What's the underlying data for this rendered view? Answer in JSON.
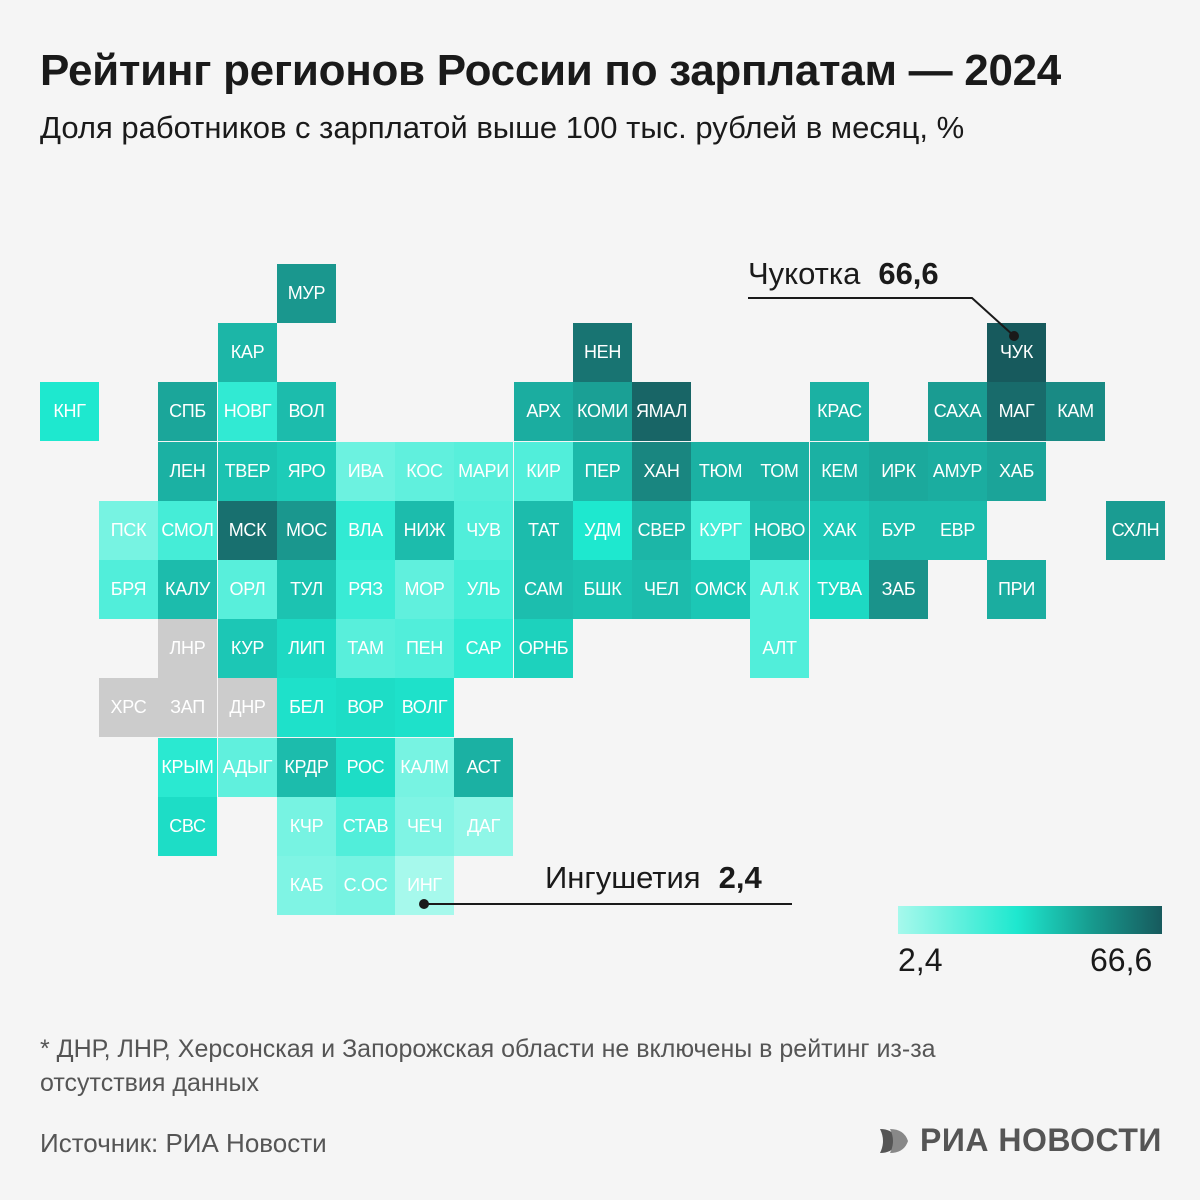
{
  "title": "Рейтинг регионов России по зарплатам — 2024",
  "subtitle": "Доля работников с зарплатой выше 100 тыс. рублей в месяц, %",
  "colors": {
    "background": "#f5f5f5",
    "scale_low": "#a6f9ec",
    "scale_mid": "#1ee8cf",
    "scale_high": "#175a5d",
    "no_data": "#cccccc"
  },
  "legend": {
    "min": "2,4",
    "max": "66,6"
  },
  "callouts": {
    "max": {
      "label": "Чукотка",
      "value": "66,6",
      "region": "ЧУК"
    },
    "min": {
      "label": "Ингушетия",
      "value": "2,4",
      "region": "ИНГ"
    }
  },
  "regions": [
    {
      "code": "МУР",
      "col": 4,
      "row": 0,
      "level": 0.72
    },
    {
      "code": "КАР",
      "col": 3,
      "row": 1,
      "level": 0.58
    },
    {
      "code": "НЕН",
      "col": 9,
      "row": 1,
      "level": 0.88
    },
    {
      "code": "ЧУК",
      "col": 16,
      "row": 1,
      "level": 1.0
    },
    {
      "code": "КНГ",
      "col": 0,
      "row": 2,
      "level": 0.35
    },
    {
      "code": "СПБ",
      "col": 2,
      "row": 2,
      "level": 0.65
    },
    {
      "code": "НОВГ",
      "col": 3,
      "row": 2,
      "level": 0.3
    },
    {
      "code": "ВОЛ",
      "col": 4,
      "row": 2,
      "level": 0.55
    },
    {
      "code": "АРХ",
      "col": 8,
      "row": 2,
      "level": 0.62
    },
    {
      "code": "КОМИ",
      "col": 9,
      "row": 2,
      "level": 0.68
    },
    {
      "code": "ЯМАЛ",
      "col": 10,
      "row": 2,
      "level": 0.95
    },
    {
      "code": "КРАС",
      "col": 13,
      "row": 2,
      "level": 0.6
    },
    {
      "code": "САХА",
      "col": 15,
      "row": 2,
      "level": 0.7
    },
    {
      "code": "МАГ",
      "col": 16,
      "row": 2,
      "level": 0.92
    },
    {
      "code": "КАМ",
      "col": 17,
      "row": 2,
      "level": 0.78
    },
    {
      "code": "ЛЕН",
      "col": 2,
      "row": 3,
      "level": 0.6
    },
    {
      "code": "ТВЕР",
      "col": 3,
      "row": 3,
      "level": 0.52
    },
    {
      "code": "ЯРО",
      "col": 4,
      "row": 3,
      "level": 0.48
    },
    {
      "code": "ИВА",
      "col": 5,
      "row": 3,
      "level": 0.15
    },
    {
      "code": "КОС",
      "col": 6,
      "row": 3,
      "level": 0.18
    },
    {
      "code": "МАРИ",
      "col": 7,
      "row": 3,
      "level": 0.2
    },
    {
      "code": "КИР",
      "col": 8,
      "row": 3,
      "level": 0.22
    },
    {
      "code": "ПЕР",
      "col": 9,
      "row": 3,
      "level": 0.56
    },
    {
      "code": "ХАН",
      "col": 10,
      "row": 3,
      "level": 0.8
    },
    {
      "code": "ТЮМ",
      "col": 11,
      "row": 3,
      "level": 0.6
    },
    {
      "code": "ТОМ",
      "col": 12,
      "row": 3,
      "level": 0.6
    },
    {
      "code": "КЕМ",
      "col": 13,
      "row": 3,
      "level": 0.6
    },
    {
      "code": "ИРК",
      "col": 14,
      "row": 3,
      "level": 0.64
    },
    {
      "code": "АМУР",
      "col": 15,
      "row": 3,
      "level": 0.62
    },
    {
      "code": "ХАБ",
      "col": 16,
      "row": 3,
      "level": 0.66
    },
    {
      "code": "ПСК",
      "col": 1,
      "row": 4,
      "level": 0.12
    },
    {
      "code": "СМОЛ",
      "col": 2,
      "row": 4,
      "level": 0.25
    },
    {
      "code": "МСК",
      "col": 3,
      "row": 4,
      "level": 0.9
    },
    {
      "code": "МОС",
      "col": 4,
      "row": 4,
      "level": 0.72
    },
    {
      "code": "ВЛА",
      "col": 5,
      "row": 4,
      "level": 0.3
    },
    {
      "code": "НИЖ",
      "col": 6,
      "row": 4,
      "level": 0.55
    },
    {
      "code": "ЧУВ",
      "col": 7,
      "row": 4,
      "level": 0.22
    },
    {
      "code": "ТАТ",
      "col": 8,
      "row": 4,
      "level": 0.55
    },
    {
      "code": "УДМ",
      "col": 9,
      "row": 4,
      "level": 0.35
    },
    {
      "code": "СВЕР",
      "col": 10,
      "row": 4,
      "level": 0.58
    },
    {
      "code": "КУРГ",
      "col": 11,
      "row": 4,
      "level": 0.25
    },
    {
      "code": "НОВО",
      "col": 12,
      "row": 4,
      "level": 0.56
    },
    {
      "code": "ХАК",
      "col": 13,
      "row": 4,
      "level": 0.5
    },
    {
      "code": "БУР",
      "col": 14,
      "row": 4,
      "level": 0.55
    },
    {
      "code": "ЕВР",
      "col": 15,
      "row": 4,
      "level": 0.55
    },
    {
      "code": "СХЛН",
      "col": 18,
      "row": 4,
      "level": 0.7
    },
    {
      "code": "БРЯ",
      "col": 1,
      "row": 5,
      "level": 0.22
    },
    {
      "code": "КАЛУ",
      "col": 2,
      "row": 5,
      "level": 0.55
    },
    {
      "code": "ОРЛ",
      "col": 3,
      "row": 5,
      "level": 0.2
    },
    {
      "code": "ТУЛ",
      "col": 4,
      "row": 5,
      "level": 0.52
    },
    {
      "code": "РЯЗ",
      "col": 5,
      "row": 5,
      "level": 0.28
    },
    {
      "code": "МОР",
      "col": 6,
      "row": 5,
      "level": 0.18
    },
    {
      "code": "УЛЬ",
      "col": 7,
      "row": 5,
      "level": 0.25
    },
    {
      "code": "САМ",
      "col": 8,
      "row": 5,
      "level": 0.54
    },
    {
      "code": "БШК",
      "col": 9,
      "row": 5,
      "level": 0.52
    },
    {
      "code": "ЧЕЛ",
      "col": 10,
      "row": 5,
      "level": 0.55
    },
    {
      "code": "ОМСК",
      "col": 11,
      "row": 5,
      "level": 0.5
    },
    {
      "code": "АЛ.К",
      "col": 12,
      "row": 5,
      "level": 0.22
    },
    {
      "code": "ТУВА",
      "col": 13,
      "row": 5,
      "level": 0.42
    },
    {
      "code": "ЗАБ",
      "col": 14,
      "row": 5,
      "level": 0.74
    },
    {
      "code": "ПРИ",
      "col": 16,
      "row": 5,
      "level": 0.62
    },
    {
      "code": "ЛНР",
      "col": 2,
      "row": 6,
      "level": null
    },
    {
      "code": "КУР",
      "col": 3,
      "row": 6,
      "level": 0.5
    },
    {
      "code": "ЛИП",
      "col": 4,
      "row": 6,
      "level": 0.42
    },
    {
      "code": "ТАМ",
      "col": 5,
      "row": 6,
      "level": 0.2
    },
    {
      "code": "ПЕН",
      "col": 6,
      "row": 6,
      "level": 0.22
    },
    {
      "code": "САР",
      "col": 7,
      "row": 6,
      "level": 0.3
    },
    {
      "code": "ОРНБ",
      "col": 8,
      "row": 6,
      "level": 0.45
    },
    {
      "code": "АЛТ",
      "col": 12,
      "row": 6,
      "level": 0.22
    },
    {
      "code": "ХРС",
      "col": 1,
      "row": 7,
      "level": null
    },
    {
      "code": "ЗАП",
      "col": 2,
      "row": 7,
      "level": null
    },
    {
      "code": "ДНР",
      "col": 3,
      "row": 7,
      "level": null
    },
    {
      "code": "БЕЛ",
      "col": 4,
      "row": 7,
      "level": 0.38
    },
    {
      "code": "ВОР",
      "col": 5,
      "row": 7,
      "level": 0.4
    },
    {
      "code": "ВОЛГ",
      "col": 6,
      "row": 7,
      "level": 0.38
    },
    {
      "code": "КРЫМ",
      "col": 2,
      "row": 8,
      "level": 0.32
    },
    {
      "code": "АДЫГ",
      "col": 3,
      "row": 8,
      "level": 0.18
    },
    {
      "code": "КРДР",
      "col": 4,
      "row": 8,
      "level": 0.55
    },
    {
      "code": "РОС",
      "col": 5,
      "row": 8,
      "level": 0.4
    },
    {
      "code": "КАЛМ",
      "col": 6,
      "row": 8,
      "level": 0.12
    },
    {
      "code": "АСТ",
      "col": 7,
      "row": 8,
      "level": 0.6
    },
    {
      "code": "СВС",
      "col": 2,
      "row": 9,
      "level": 0.4
    },
    {
      "code": "КЧР",
      "col": 4,
      "row": 9,
      "level": 0.12
    },
    {
      "code": "СТАВ",
      "col": 5,
      "row": 9,
      "level": 0.22
    },
    {
      "code": "ЧЕЧ",
      "col": 6,
      "row": 9,
      "level": 0.1
    },
    {
      "code": "ДАГ",
      "col": 7,
      "row": 9,
      "level": 0.06
    },
    {
      "code": "КАБ",
      "col": 4,
      "row": 10,
      "level": 0.1
    },
    {
      "code": "С.ОС",
      "col": 5,
      "row": 10,
      "level": 0.12
    },
    {
      "code": "ИНГ",
      "col": 6,
      "row": 10,
      "level": 0.0
    }
  ],
  "footnote": "* ДНР, ЛНР, Херсонская и Запорожская области не включены в рейтинг из-за отсутствия данных",
  "source": "Источник: РИА Новости",
  "logo_text": "РИА НОВОСТИ"
}
